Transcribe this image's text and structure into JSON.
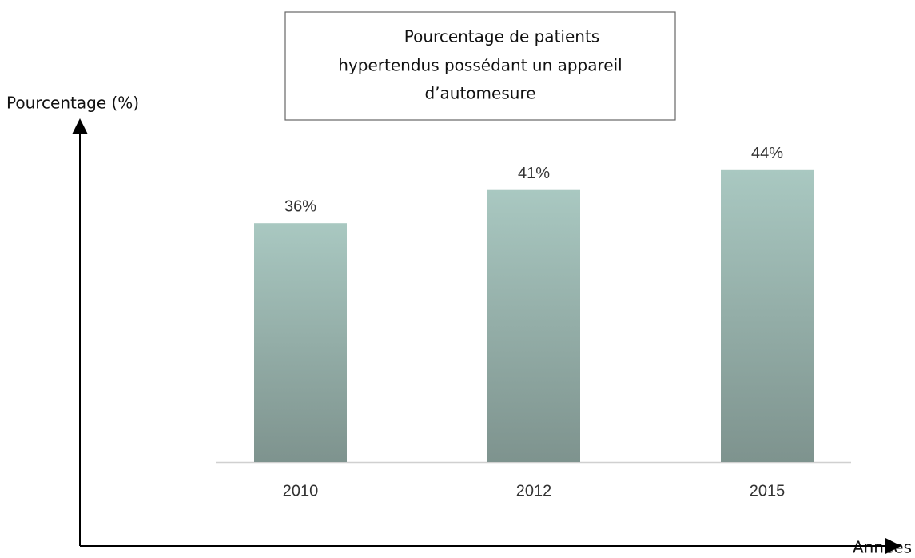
{
  "chart_data": {
    "type": "bar",
    "title": [
      "Pourcentage de patients",
      "hypertendus possédant un appareil",
      "d’automesure"
    ],
    "y_label": "Pourcentage (%)",
    "x_label": "Années",
    "categories": [
      "2010",
      "2012",
      "2015"
    ],
    "values": [
      36,
      41,
      44
    ],
    "value_labels": [
      "36%",
      "41%",
      "44%"
    ],
    "color": "#a9c8c1",
    "ylim": [
      0,
      50
    ]
  }
}
